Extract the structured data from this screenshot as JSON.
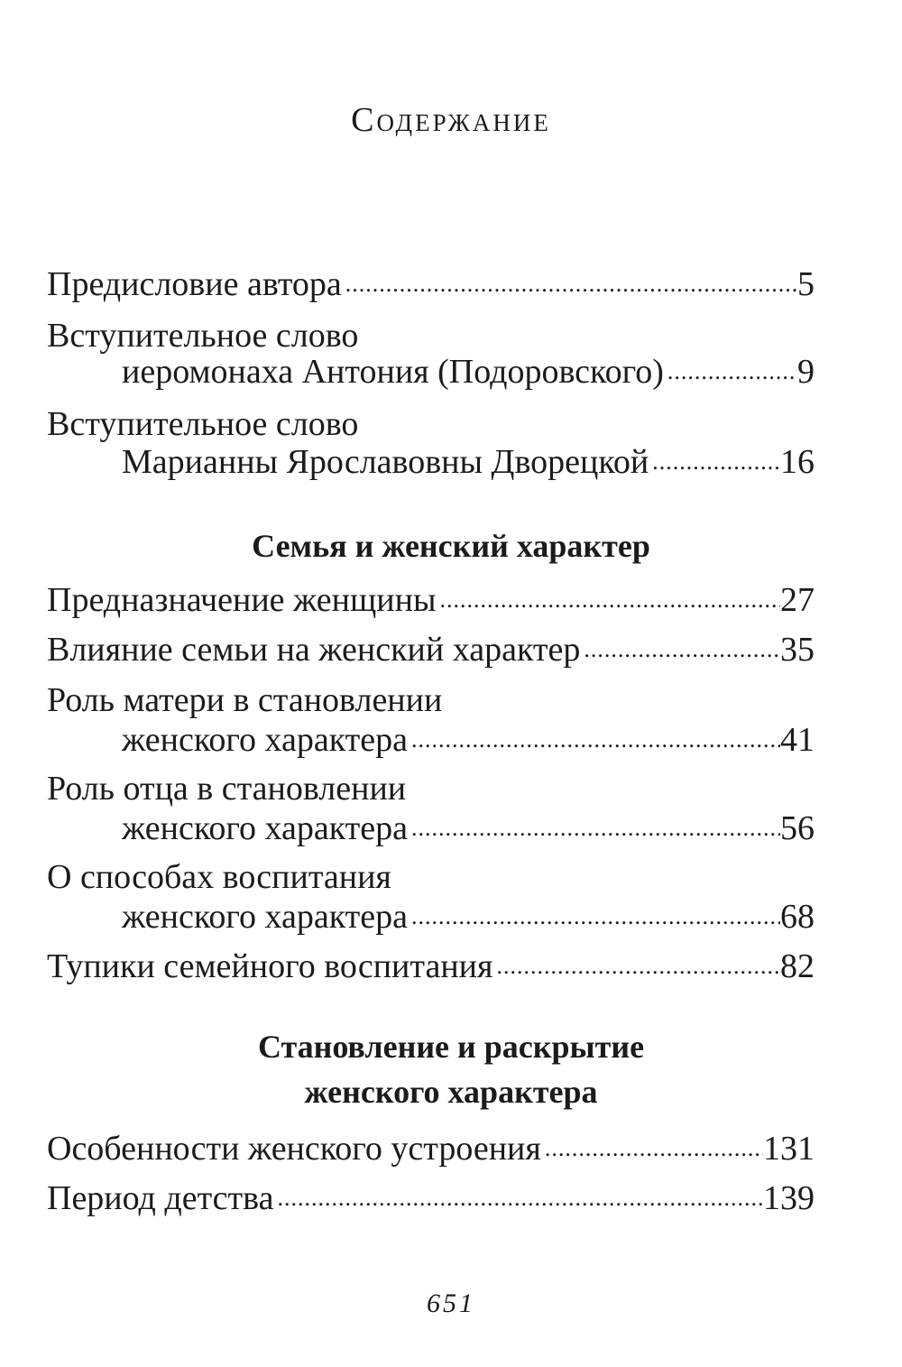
{
  "title": "Содержание",
  "sections": [
    {
      "entries": [
        {
          "lines": [
            "Предисловие автора"
          ],
          "page": "5"
        },
        {
          "lines": [
            "Вступительное слово",
            "иеромонаха Антония (Подоровского)"
          ],
          "page": "9"
        },
        {
          "lines": [
            "Вступительное слово",
            "Марианны Ярославовны Дворецкой"
          ],
          "page": "16"
        }
      ]
    },
    {
      "heading": [
        "Семья и женский характер"
      ],
      "entries": [
        {
          "lines": [
            "Предназначение женщины"
          ],
          "page": "27"
        },
        {
          "lines": [
            "Влияние семьи на женский характер"
          ],
          "page": "35"
        },
        {
          "lines": [
            "Роль матери в становлении",
            "женского характера"
          ],
          "page": "41"
        },
        {
          "lines": [
            "Роль отца в становлении",
            "женского характера"
          ],
          "page": "56"
        },
        {
          "lines": [
            "О способах воспитания",
            "женского характера"
          ],
          "page": "68"
        },
        {
          "lines": [
            "Тупики семейного воспитания"
          ],
          "page": "82"
        }
      ]
    },
    {
      "heading": [
        "Становление и раскрытие",
        "женского характера"
      ],
      "entries": [
        {
          "lines": [
            "Особенности женского устроения"
          ],
          "page": "131"
        },
        {
          "lines": [
            "Период детства"
          ],
          "page": "139"
        }
      ]
    }
  ],
  "page_number": "651"
}
